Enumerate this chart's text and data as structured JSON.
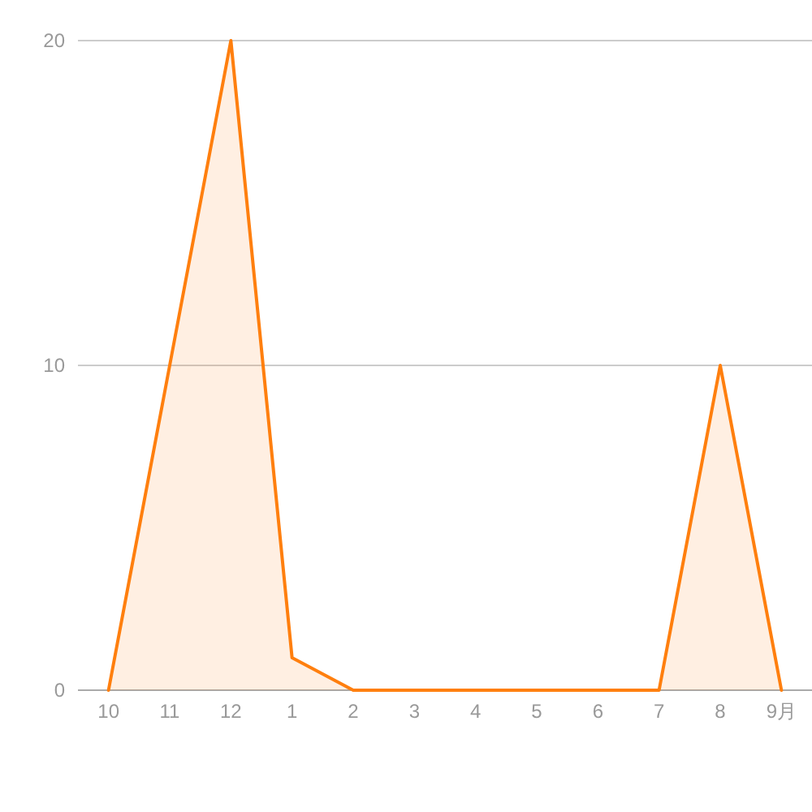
{
  "chart_data": {
    "type": "area",
    "categories": [
      "10",
      "11",
      "12",
      "1",
      "2",
      "3",
      "4",
      "5",
      "6",
      "7",
      "8",
      "9月"
    ],
    "series": [
      {
        "color": "#ff7f0e",
        "values": [
          0,
          10,
          20,
          1,
          0,
          0,
          0,
          0,
          0,
          0,
          10,
          0
        ]
      }
    ],
    "ylim": [
      0,
      20
    ],
    "yticks": [
      0,
      10,
      20
    ],
    "grid": "y"
  }
}
